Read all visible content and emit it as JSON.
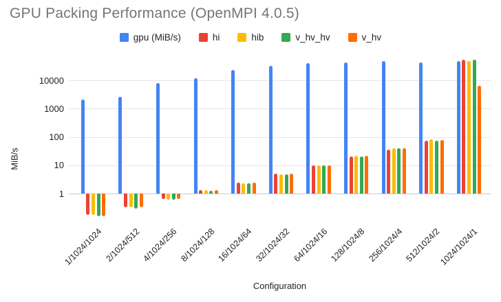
{
  "chart_data": {
    "type": "bar",
    "title": "GPU Packing Performance (OpenMPI 4.0.5)",
    "xlabel": "Configuration",
    "ylabel": "MiB/s",
    "y_scale": "log",
    "y_ticks": [
      1,
      10,
      100,
      1000,
      10000
    ],
    "ylim": [
      0.12,
      60000
    ],
    "grid": true,
    "legend_position": "top",
    "bar_baseline": 1,
    "categories": [
      "1/1024/1024",
      "2/1024/512",
      "4/1024/256",
      "8/1024/128",
      "16/1024/64",
      "32/1024/32",
      "64/1024/16",
      "128/1024/8",
      "256/1024/4",
      "512/1024/2",
      "1024/1024/1"
    ],
    "series": [
      {
        "name": "gpu (MiB/s)",
        "color": "#4285F4",
        "values": [
          2100,
          2600,
          8000,
          12000,
          23000,
          32000,
          40000,
          42000,
          47000,
          44000,
          48000
        ]
      },
      {
        "name": "hi",
        "color": "#EA4335",
        "values": [
          0.18,
          0.32,
          0.65,
          1.35,
          2.4,
          5.0,
          10,
          21,
          36,
          75,
          54000
        ]
      },
      {
        "name": "hib",
        "color": "#FBBC04",
        "values": [
          0.18,
          0.32,
          0.62,
          1.3,
          2.3,
          4.8,
          9.8,
          21.5,
          39,
          82,
          48000
        ]
      },
      {
        "name": "v_hv_hv",
        "color": "#34A853",
        "values": [
          0.16,
          0.3,
          0.62,
          1.25,
          2.35,
          4.8,
          10,
          20,
          39,
          74,
          54000
        ]
      },
      {
        "name": "v_hv",
        "color": "#FF6D01",
        "values": [
          0.16,
          0.32,
          0.65,
          1.3,
          2.4,
          5.0,
          9.8,
          21.5,
          39,
          80,
          6600
        ]
      }
    ],
    "title_color": "#757575",
    "gridline_color": "#e6e6e6",
    "text_color": "#222222"
  }
}
